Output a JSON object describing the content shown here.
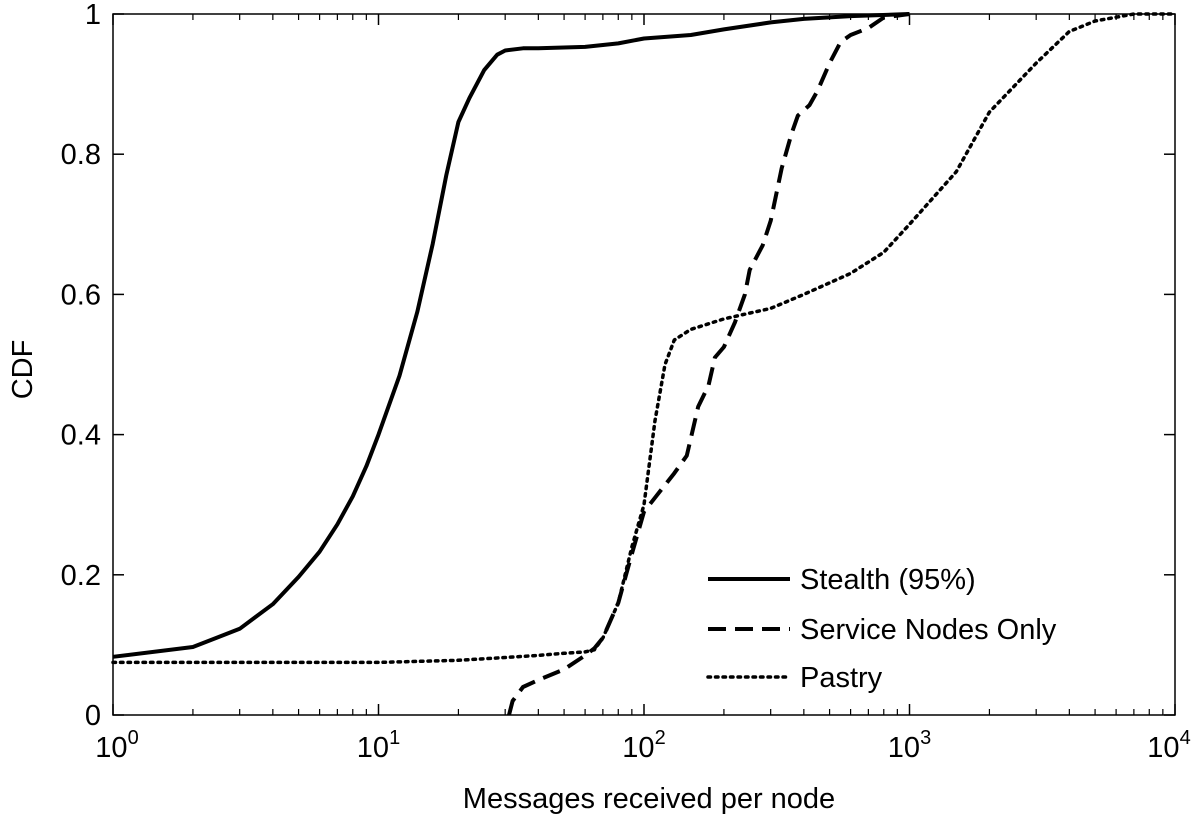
{
  "chart_data": {
    "type": "line",
    "title": "",
    "xlabel": "Messages received per node",
    "ylabel": "CDF",
    "xscale": "log",
    "xlim": [
      1,
      10000
    ],
    "ylim": [
      0,
      1
    ],
    "x_ticks": [
      {
        "value": 1,
        "base": "10",
        "exp": "0"
      },
      {
        "value": 10,
        "base": "10",
        "exp": "1"
      },
      {
        "value": 100,
        "base": "10",
        "exp": "2"
      },
      {
        "value": 1000,
        "base": "10",
        "exp": "3"
      },
      {
        "value": 10000,
        "base": "10",
        "exp": "4"
      }
    ],
    "y_ticks": [
      {
        "value": 0,
        "label": "0"
      },
      {
        "value": 0.2,
        "label": "0.2"
      },
      {
        "value": 0.4,
        "label": "0.4"
      },
      {
        "value": 0.6,
        "label": "0.6"
      },
      {
        "value": 0.8,
        "label": "0.8"
      },
      {
        "value": 1,
        "label": "1"
      }
    ],
    "grid": false,
    "legend_position": "bottom-right",
    "series": [
      {
        "name": "Stealth (95%)",
        "style": "solid",
        "color": "#000000",
        "points": [
          [
            1,
            0.083
          ],
          [
            2,
            0.097
          ],
          [
            3,
            0.123
          ],
          [
            4,
            0.158
          ],
          [
            5,
            0.197
          ],
          [
            6,
            0.233
          ],
          [
            7,
            0.272
          ],
          [
            8,
            0.312
          ],
          [
            9,
            0.355
          ],
          [
            10,
            0.4
          ],
          [
            12,
            0.484
          ],
          [
            14,
            0.575
          ],
          [
            16,
            0.672
          ],
          [
            18,
            0.77
          ],
          [
            20,
            0.846
          ],
          [
            22,
            0.88
          ],
          [
            25,
            0.92
          ],
          [
            28,
            0.942
          ],
          [
            30,
            0.948
          ],
          [
            35,
            0.951
          ],
          [
            40,
            0.951
          ],
          [
            60,
            0.953
          ],
          [
            80,
            0.958
          ],
          [
            100,
            0.965
          ],
          [
            150,
            0.97
          ],
          [
            200,
            0.978
          ],
          [
            300,
            0.988
          ],
          [
            400,
            0.993
          ],
          [
            600,
            0.997
          ],
          [
            1000,
            1.0
          ]
        ]
      },
      {
        "name": "Service Nodes Only",
        "style": "dashed",
        "color": "#000000",
        "points": [
          [
            31,
            0.0
          ],
          [
            32,
            0.02
          ],
          [
            35,
            0.04
          ],
          [
            40,
            0.05
          ],
          [
            50,
            0.065
          ],
          [
            60,
            0.085
          ],
          [
            65,
            0.095
          ],
          [
            70,
            0.11
          ],
          [
            80,
            0.16
          ],
          [
            90,
            0.23
          ],
          [
            100,
            0.29
          ],
          [
            110,
            0.31
          ],
          [
            130,
            0.345
          ],
          [
            145,
            0.37
          ],
          [
            160,
            0.44
          ],
          [
            175,
            0.47
          ],
          [
            185,
            0.51
          ],
          [
            200,
            0.525
          ],
          [
            220,
            0.56
          ],
          [
            240,
            0.6
          ],
          [
            250,
            0.635
          ],
          [
            280,
            0.67
          ],
          [
            300,
            0.705
          ],
          [
            330,
            0.78
          ],
          [
            360,
            0.83
          ],
          [
            380,
            0.855
          ],
          [
            420,
            0.87
          ],
          [
            450,
            0.89
          ],
          [
            500,
            0.93
          ],
          [
            550,
            0.96
          ],
          [
            600,
            0.97
          ],
          [
            700,
            0.98
          ],
          [
            800,
            0.995
          ],
          [
            1000,
            1.0
          ]
        ]
      },
      {
        "name": "Pastry",
        "style": "dotted",
        "color": "#000000",
        "points": [
          [
            1,
            0.075
          ],
          [
            10,
            0.075
          ],
          [
            20,
            0.078
          ],
          [
            30,
            0.082
          ],
          [
            40,
            0.085
          ],
          [
            50,
            0.088
          ],
          [
            60,
            0.09
          ],
          [
            65,
            0.093
          ],
          [
            70,
            0.11
          ],
          [
            80,
            0.16
          ],
          [
            90,
            0.24
          ],
          [
            100,
            0.3
          ],
          [
            110,
            0.42
          ],
          [
            120,
            0.5
          ],
          [
            130,
            0.535
          ],
          [
            150,
            0.55
          ],
          [
            200,
            0.565
          ],
          [
            300,
            0.58
          ],
          [
            400,
            0.6
          ],
          [
            600,
            0.63
          ],
          [
            800,
            0.66
          ],
          [
            1000,
            0.7
          ],
          [
            1500,
            0.775
          ],
          [
            2000,
            0.86
          ],
          [
            3000,
            0.93
          ],
          [
            4000,
            0.975
          ],
          [
            5000,
            0.99
          ],
          [
            7000,
            1.0
          ],
          [
            10000,
            1.0
          ]
        ]
      }
    ]
  }
}
